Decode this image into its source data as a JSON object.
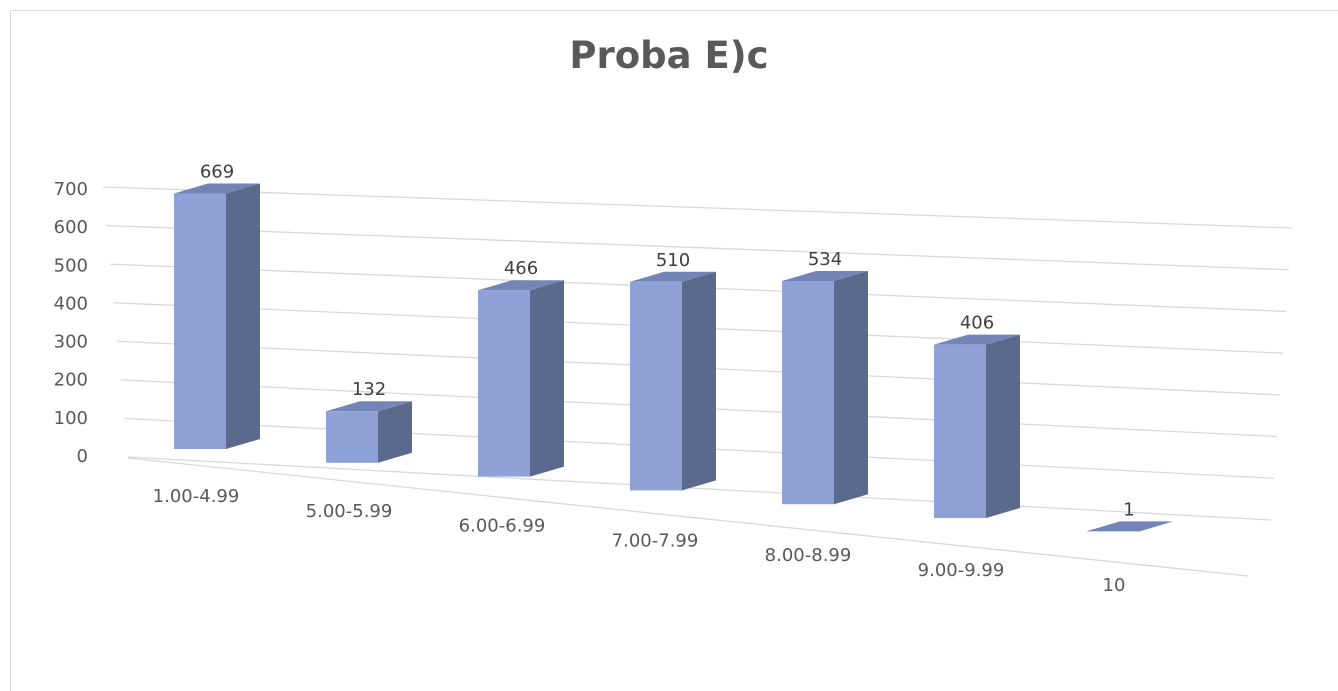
{
  "chart_data": {
    "type": "bar",
    "title": "Proba E)c",
    "categories": [
      "1.00-4.99",
      "5.00-5.99",
      "6.00-6.99",
      "7.00-7.99",
      "8.00-8.99",
      "9.00-9.99",
      "10"
    ],
    "values": [
      669,
      132,
      466,
      510,
      534,
      406,
      1
    ],
    "data_labels": [
      "669",
      "132",
      "466",
      "510",
      "534",
      "406",
      "1"
    ],
    "y_ticks": [
      "0",
      "100",
      "200",
      "300",
      "400",
      "500",
      "600",
      "700"
    ],
    "ylim": [
      0,
      700
    ],
    "grid": true,
    "legend": "none",
    "style": "3d-perspective",
    "colors": {
      "front": "#8fa2d8",
      "side": "#5a6a8c",
      "top": "#7285b6",
      "grid": "#d9d9d9",
      "text": "#595959"
    }
  }
}
